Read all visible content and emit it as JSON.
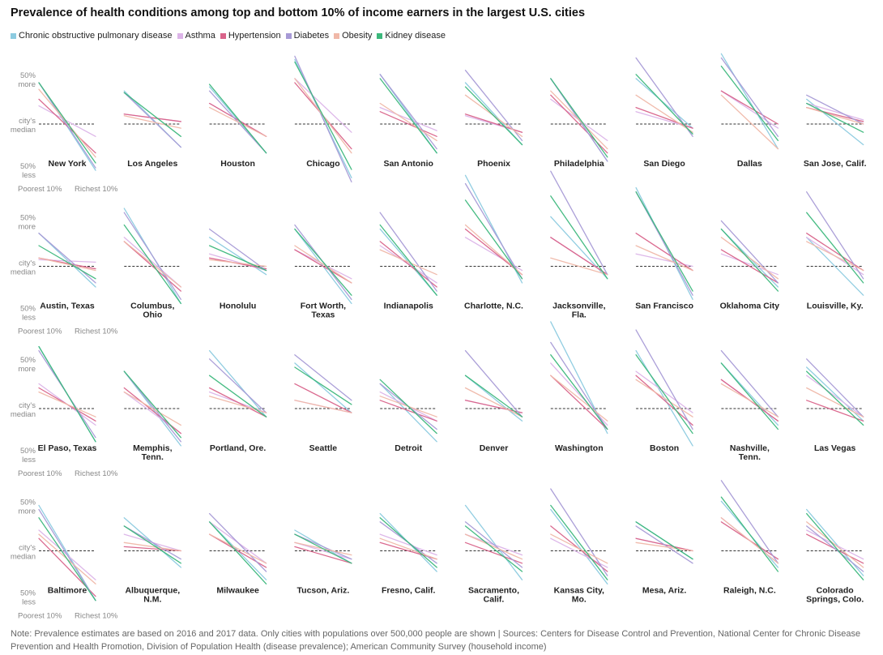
{
  "title": "Prevalence of health conditions among top and bottom 10% of income earners in the largest U.S. cities",
  "legend": [
    {
      "label": "Chronic obstructive pulmonary disease",
      "color": "#8ccbe0"
    },
    {
      "label": "Asthma",
      "color": "#dcb4e8"
    },
    {
      "label": "Hypertension",
      "color": "#d9638a"
    },
    {
      "label": "Diabetes",
      "color": "#a79ad6"
    },
    {
      "label": "Obesity",
      "color": "#f0b8a8"
    },
    {
      "label": "Kidney disease",
      "color": "#3cb87c"
    }
  ],
  "axis": {
    "more_line1": "50%",
    "more_line2": "more",
    "median_line1": "city's",
    "median_line2": "median",
    "less_line1": "50%",
    "less_line2": "less",
    "x_left": "Poorest 10%",
    "x_right": "Richest 10%"
  },
  "note": "Note: Prevalence estimates are based on 2016 and 2017 data. Only cities with populations over 500,000 people are shown | Sources: Centers for Disease Control and Prevention, National Center for Chronic Disease Prevention and Health Promotion, Division of Population Health (disease prevalence); American Community Survey (household income)",
  "chart_data": {
    "type": "line",
    "x": [
      "Poorest 10%",
      "Richest 10%"
    ],
    "y_unit": "percent difference from city's median prevalence",
    "ylim": [
      -50,
      50
    ],
    "series_order": [
      "Chronic obstructive pulmonary disease",
      "Asthma",
      "Hypertension",
      "Diabetes",
      "Obesity",
      "Kidney disease"
    ],
    "cities": [
      {
        "name": [
          "New York"
        ],
        "values": [
          [
            50,
            -56
          ],
          [
            22,
            -15
          ],
          [
            30,
            -35
          ],
          [
            50,
            -53
          ],
          [
            42,
            -40
          ],
          [
            50,
            -47
          ]
        ]
      },
      {
        "name": [
          "Los Angeles"
        ],
        "values": [
          [
            40,
            -28
          ],
          [
            12,
            3
          ],
          [
            12,
            3
          ],
          [
            38,
            -28
          ],
          [
            10,
            -5
          ],
          [
            38,
            -15
          ]
        ]
      },
      {
        "name": [
          "Houston"
        ],
        "values": [
          [
            45,
            -35
          ],
          [
            25,
            -15
          ],
          [
            25,
            -15
          ],
          [
            40,
            -35
          ],
          [
            20,
            -15
          ],
          [
            48,
            -35
          ]
        ]
      },
      {
        "name": [
          "Chicago"
        ],
        "values": [
          [
            78,
            -65
          ],
          [
            55,
            -10
          ],
          [
            50,
            -30
          ],
          [
            82,
            -70
          ],
          [
            55,
            -35
          ],
          [
            75,
            -55
          ]
        ]
      },
      {
        "name": [
          "San Antonio"
        ],
        "values": [
          [
            60,
            -35
          ],
          [
            20,
            -8
          ],
          [
            15,
            -15
          ],
          [
            60,
            -30
          ],
          [
            25,
            -20
          ],
          [
            55,
            -35
          ]
        ]
      },
      {
        "name": [
          "Phoenix"
        ],
        "values": [
          [
            50,
            -25
          ],
          [
            10,
            -10
          ],
          [
            12,
            -10
          ],
          [
            65,
            -20
          ],
          [
            35,
            -15
          ],
          [
            45,
            -25
          ]
        ]
      },
      {
        "name": [
          "Philadelphia"
        ],
        "values": [
          [
            55,
            -45
          ],
          [
            30,
            -20
          ],
          [
            35,
            -35
          ],
          [
            55,
            -45
          ],
          [
            40,
            -30
          ],
          [
            55,
            -40
          ]
        ]
      },
      {
        "name": [
          "San Diego"
        ],
        "values": [
          [
            55,
            -5
          ],
          [
            15,
            -5
          ],
          [
            20,
            -5
          ],
          [
            80,
            -15
          ],
          [
            35,
            -10
          ],
          [
            60,
            -12
          ]
        ]
      },
      {
        "name": [
          "Dallas"
        ],
        "values": [
          [
            85,
            -30
          ],
          [
            40,
            -5
          ],
          [
            40,
            0
          ],
          [
            80,
            -15
          ],
          [
            35,
            -30
          ],
          [
            70,
            -20
          ]
        ]
      },
      {
        "name": [
          "San Jose, Calif."
        ],
        "values": [
          [
            30,
            -25
          ],
          [
            25,
            5
          ],
          [
            20,
            3
          ],
          [
            35,
            0
          ],
          [
            20,
            0
          ],
          [
            25,
            -10
          ]
        ]
      },
      {
        "name": [
          "Austin, Texas"
        ],
        "values": [
          [
            40,
            -25
          ],
          [
            8,
            5
          ],
          [
            10,
            -3
          ],
          [
            40,
            -20
          ],
          [
            10,
            -5
          ],
          [
            25,
            -15
          ]
        ]
      },
      {
        "name": [
          "Columbus,",
          "Ohio"
        ],
        "values": [
          [
            70,
            -45
          ],
          [
            35,
            -25
          ],
          [
            30,
            -30
          ],
          [
            65,
            -40
          ],
          [
            30,
            -25
          ],
          [
            50,
            -45
          ]
        ]
      },
      {
        "name": [
          "Honolulu"
        ],
        "values": [
          [
            35,
            -10
          ],
          [
            15,
            -5
          ],
          [
            10,
            -3
          ],
          [
            45,
            -5
          ],
          [
            8,
            0
          ],
          [
            25,
            -5
          ]
        ]
      },
      {
        "name": [
          "Fort Worth,",
          "Texas"
        ],
        "values": [
          [
            45,
            -45
          ],
          [
            20,
            -15
          ],
          [
            20,
            -20
          ],
          [
            50,
            -40
          ],
          [
            25,
            -20
          ],
          [
            45,
            -35
          ]
        ]
      },
      {
        "name": [
          "Indianapolis"
        ],
        "values": [
          [
            45,
            -35
          ],
          [
            25,
            -20
          ],
          [
            30,
            -25
          ],
          [
            65,
            -30
          ],
          [
            20,
            -10
          ],
          [
            50,
            -35
          ]
        ]
      },
      {
        "name": [
          "Charlotte, N.C."
        ],
        "values": [
          [
            110,
            -20
          ],
          [
            35,
            -5
          ],
          [
            45,
            -10
          ],
          [
            100,
            -15
          ],
          [
            50,
            -10
          ],
          [
            80,
            -15
          ]
        ]
      },
      {
        "name": [
          "Jacksonville,",
          "Fla."
        ],
        "values": [
          [
            60,
            -15
          ],
          [
            35,
            -10
          ],
          [
            35,
            -10
          ],
          [
            115,
            -10
          ],
          [
            10,
            -10
          ],
          [
            85,
            -15
          ]
        ]
      },
      {
        "name": [
          "San Francisco"
        ],
        "values": [
          [
            95,
            -40
          ],
          [
            15,
            0
          ],
          [
            40,
            -5
          ],
          [
            90,
            -35
          ],
          [
            25,
            -5
          ],
          [
            90,
            -30
          ]
        ]
      },
      {
        "name": [
          "Oklahoma City"
        ],
        "values": [
          [
            45,
            -25
          ],
          [
            15,
            -10
          ],
          [
            20,
            -20
          ],
          [
            55,
            -20
          ],
          [
            35,
            -15
          ],
          [
            45,
            -30
          ]
        ]
      },
      {
        "name": [
          "Louisville, Ky."
        ],
        "values": [
          [
            35,
            -35
          ],
          [
            35,
            -10
          ],
          [
            40,
            -5
          ],
          [
            90,
            -15
          ],
          [
            30,
            -5
          ],
          [
            65,
            -20
          ]
        ]
      },
      {
        "name": [
          "El Paso, Texas"
        ],
        "values": [
          [
            75,
            -40
          ],
          [
            30,
            -20
          ],
          [
            25,
            -15
          ],
          [
            70,
            -35
          ],
          [
            20,
            -10
          ],
          [
            75,
            -40
          ]
        ]
      },
      {
        "name": [
          "Memphis,",
          "Tenn."
        ],
        "values": [
          [
            45,
            -45
          ],
          [
            20,
            -30
          ],
          [
            25,
            -30
          ],
          [
            45,
            -40
          ],
          [
            20,
            -20
          ],
          [
            45,
            -35
          ]
        ]
      },
      {
        "name": [
          "Portland, Ore."
        ],
        "values": [
          [
            70,
            -10
          ],
          [
            20,
            -5
          ],
          [
            25,
            -10
          ],
          [
            60,
            -5
          ],
          [
            15,
            -5
          ],
          [
            40,
            -10
          ]
        ]
      },
      {
        "name": [
          "Seattle"
        ],
        "values": [
          [
            55,
            -5
          ],
          [
            10,
            -5
          ],
          [
            30,
            -5
          ],
          [
            65,
            10
          ],
          [
            10,
            -5
          ],
          [
            50,
            5
          ]
        ]
      },
      {
        "name": [
          "Detroit"
        ],
        "values": [
          [
            30,
            -40
          ],
          [
            20,
            -15
          ],
          [
            10,
            -15
          ],
          [
            30,
            -25
          ],
          [
            15,
            -10
          ],
          [
            35,
            -30
          ]
        ]
      },
      {
        "name": [
          "Denver"
        ],
        "values": [
          [
            40,
            -15
          ],
          [
            10,
            -5
          ],
          [
            10,
            -5
          ],
          [
            70,
            -10
          ],
          [
            25,
            -10
          ],
          [
            40,
            -10
          ]
        ]
      },
      {
        "name": [
          "Washington"
        ],
        "values": [
          [
            105,
            -30
          ],
          [
            55,
            -20
          ],
          [
            40,
            -25
          ],
          [
            80,
            -25
          ],
          [
            40,
            -15
          ],
          [
            65,
            -25
          ]
        ]
      },
      {
        "name": [
          "Boston"
        ],
        "values": [
          [
            70,
            -45
          ],
          [
            45,
            -5
          ],
          [
            40,
            -20
          ],
          [
            95,
            -25
          ],
          [
            35,
            -10
          ],
          [
            65,
            -30
          ]
        ]
      },
      {
        "name": [
          "Nashville,",
          "Tenn."
        ],
        "values": [
          [
            55,
            -20
          ],
          [
            35,
            -15
          ],
          [
            35,
            -15
          ],
          [
            70,
            -10
          ],
          [
            30,
            -10
          ],
          [
            55,
            -25
          ]
        ]
      },
      {
        "name": [
          "Las Vegas"
        ],
        "values": [
          [
            50,
            -15
          ],
          [
            40,
            -10
          ],
          [
            10,
            -15
          ],
          [
            60,
            -10
          ],
          [
            25,
            -10
          ],
          [
            45,
            -20
          ]
        ]
      },
      {
        "name": [
          "Baltimore"
        ],
        "values": [
          [
            55,
            -60
          ],
          [
            25,
            -35
          ],
          [
            15,
            -55
          ],
          [
            50,
            -60
          ],
          [
            20,
            -40
          ],
          [
            40,
            -60
          ]
        ]
      },
      {
        "name": [
          "Albuquerque,",
          "N.M."
        ],
        "values": [
          [
            40,
            -20
          ],
          [
            20,
            0
          ],
          [
            5,
            0
          ],
          [
            30,
            -10
          ],
          [
            10,
            0
          ],
          [
            30,
            -15
          ]
        ]
      },
      {
        "name": [
          "Milwaukee"
        ],
        "values": [
          [
            35,
            -35
          ],
          [
            35,
            -15
          ],
          [
            20,
            -20
          ],
          [
            45,
            -25
          ],
          [
            20,
            -15
          ],
          [
            35,
            -40
          ]
        ]
      },
      {
        "name": [
          "Tucson, Ariz."
        ],
        "values": [
          [
            25,
            -15
          ],
          [
            10,
            -10
          ],
          [
            5,
            -15
          ],
          [
            20,
            -10
          ],
          [
            10,
            -5
          ],
          [
            20,
            -15
          ]
        ]
      },
      {
        "name": [
          "Fresno, Calif."
        ],
        "values": [
          [
            45,
            -25
          ],
          [
            20,
            -5
          ],
          [
            10,
            -10
          ],
          [
            35,
            -15
          ],
          [
            15,
            -10
          ],
          [
            40,
            -20
          ]
        ]
      },
      {
        "name": [
          "Sacramento,",
          "Calif."
        ],
        "values": [
          [
            55,
            -35
          ],
          [
            20,
            -5
          ],
          [
            10,
            -15
          ],
          [
            35,
            -20
          ],
          [
            20,
            -10
          ],
          [
            30,
            -25
          ]
        ]
      },
      {
        "name": [
          "Kansas City,",
          "Mo."
        ],
        "values": [
          [
            50,
            -40
          ],
          [
            15,
            -20
          ],
          [
            30,
            -25
          ],
          [
            75,
            -30
          ],
          [
            20,
            -15
          ],
          [
            55,
            -35
          ]
        ]
      },
      {
        "name": [
          "Mesa, Ariz."
        ],
        "values": [
          [
            35,
            -10
          ],
          [
            15,
            0
          ],
          [
            15,
            0
          ],
          [
            30,
            -15
          ],
          [
            10,
            0
          ],
          [
            35,
            -10
          ]
        ]
      },
      {
        "name": [
          "Raleigh, N.C."
        ],
        "values": [
          [
            60,
            -20
          ],
          [
            40,
            -15
          ],
          [
            35,
            -10
          ],
          [
            85,
            -15
          ],
          [
            40,
            -15
          ],
          [
            65,
            -25
          ]
        ]
      },
      {
        "name": [
          "Colorado",
          "Springs, Colo."
        ],
        "values": [
          [
            50,
            -30
          ],
          [
            25,
            -10
          ],
          [
            20,
            -15
          ],
          [
            30,
            -25
          ],
          [
            35,
            -20
          ],
          [
            45,
            -35
          ]
        ]
      }
    ]
  }
}
